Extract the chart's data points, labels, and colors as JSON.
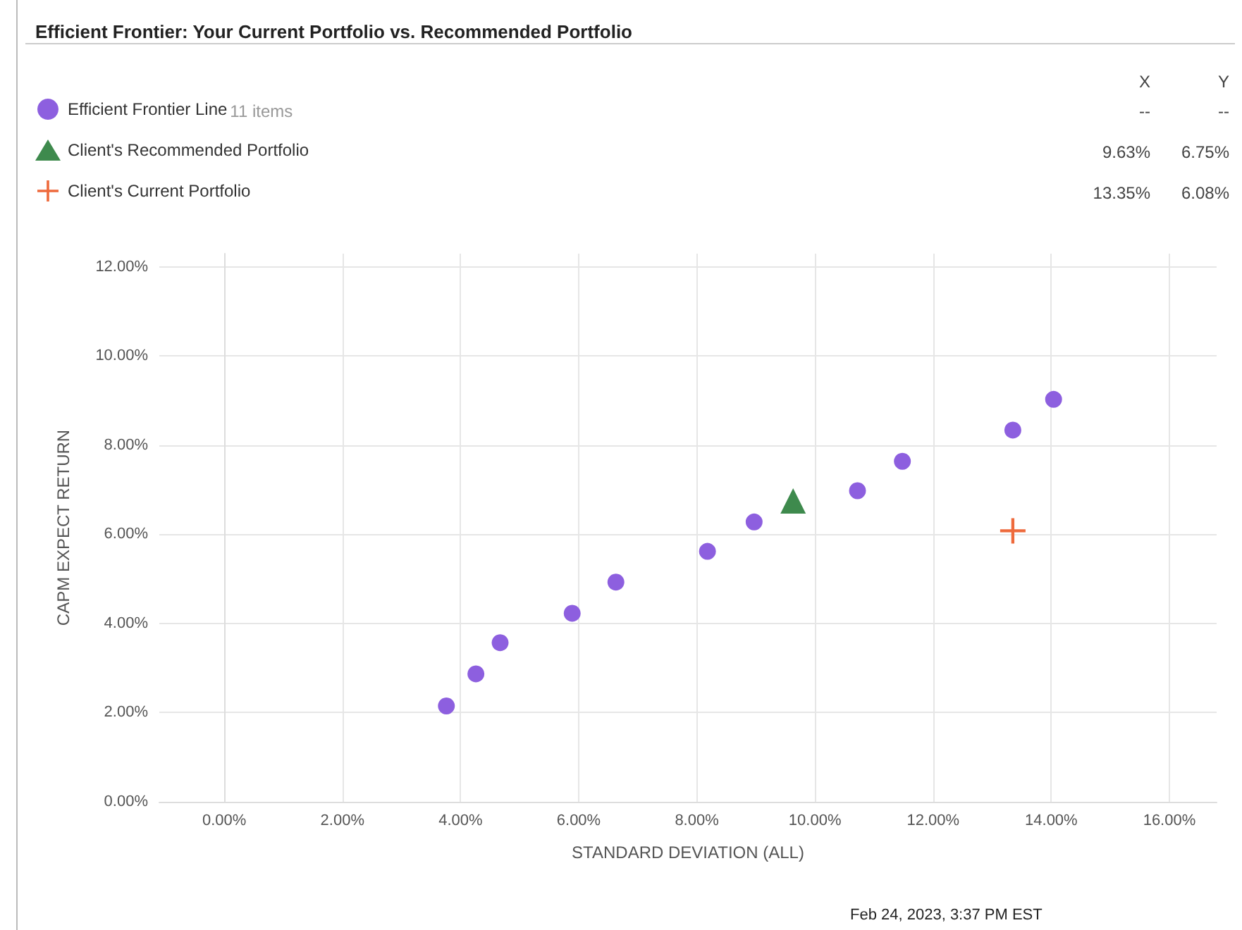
{
  "chart_data": {
    "type": "scatter",
    "title": "Efficient Frontier: Your Current Portfolio vs. Recommended Portfolio",
    "xlabel": "STANDARD DEVIATION (ALL)",
    "ylabel": "CAPM EXPECT RETURN",
    "series": [
      {
        "name": "Efficient Frontier Line",
        "color": "#8d5fdf",
        "marker": "circle",
        "x": [
          3.76,
          4.26,
          4.67,
          5.89,
          6.63,
          8.18,
          8.97,
          10.72,
          11.48,
          13.35,
          14.04
        ],
        "values": [
          2.15,
          2.87,
          3.57,
          4.23,
          4.93,
          5.62,
          6.28,
          6.98,
          7.64,
          8.34,
          9.03
        ]
      },
      {
        "name": "Client's Recommended Portfolio",
        "color": "#3e8a4d",
        "marker": "triangle",
        "x": [
          9.63
        ],
        "values": [
          6.75
        ]
      },
      {
        "name": "Client's Current Portfolio",
        "color": "#ee6a3c",
        "marker": "cross",
        "x": [
          13.35
        ],
        "values": [
          6.08
        ]
      }
    ],
    "annotations": [
      "11 items",
      "X",
      "Y",
      "--",
      "--",
      "9.63%",
      "6.75%",
      "13.35%",
      "6.08%",
      "Feb 24, 2023, 3:37 PM EST"
    ],
    "xlim": [
      -1.1,
      16.8
    ],
    "xticks": [
      {
        "value": 0,
        "label": "0.00%"
      },
      {
        "value": 2,
        "label": "2.00%"
      },
      {
        "value": 4,
        "label": "4.00%"
      },
      {
        "value": 6,
        "label": "6.00%"
      },
      {
        "value": 8,
        "label": "8.00%"
      },
      {
        "value": 10,
        "label": "10.00%"
      },
      {
        "value": 12,
        "label": "12.00%"
      },
      {
        "value": 14,
        "label": "14.00%"
      },
      {
        "value": 16,
        "label": "16.00%"
      }
    ],
    "ylim": [
      0,
      12.3
    ],
    "yticks": [
      {
        "value": 0,
        "label": "0.00%"
      },
      {
        "value": 2,
        "label": "2.00%"
      },
      {
        "value": 4,
        "label": "4.00%"
      },
      {
        "value": 6,
        "label": "6.00%"
      },
      {
        "value": 8,
        "label": "8.00%"
      },
      {
        "value": 10,
        "label": "10.00%"
      },
      {
        "value": 12,
        "label": "12.00%"
      }
    ],
    "grid": true,
    "legend": "top left"
  }
}
